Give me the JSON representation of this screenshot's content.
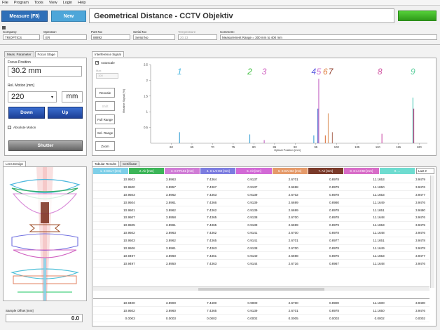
{
  "menu": [
    "File",
    "Program",
    "Tools",
    "View",
    "Login",
    "Help"
  ],
  "toolbar": {
    "measure_label": "Measure (F8)",
    "new_label": "New",
    "title": "Geometrical Distance - CCTV Objektiv",
    "status_color": "#3cb521"
  },
  "info": {
    "company": {
      "label": "Company:",
      "value": "TRIOPTICS"
    },
    "operator": {
      "label": "Operator:",
      "value": "ER"
    },
    "part": {
      "label": "Part No:",
      "value": "88892"
    },
    "serial": {
      "label": "Serial No:",
      "value": "Serial No"
    },
    "temperature": {
      "label": "Temperature",
      "value": "20.13"
    },
    "comment": {
      "label": "Comment:",
      "value": "Measurement Range = 300 mm to 400 mm"
    }
  },
  "left": {
    "tabs": [
      "Meas. Parameter",
      "Focus Stage"
    ],
    "focus_position_label": "Focus Position",
    "focus_position_value": "30.2 mm",
    "rel_motion_label": "Rel. Motion [mm]",
    "rel_motion_value": "220",
    "unit": "mm",
    "down": "Down",
    "up": "Up",
    "absolute_motion": "Absolute Motion",
    "shutter": "Shutter"
  },
  "signal": {
    "tab": "Interference Signal",
    "autoscale": "Autoscale",
    "max_label": "Max",
    "max_value": "100",
    "buttons": [
      "Rescale",
      "Shift",
      "Full Range",
      "Sel. Range",
      "Zoom"
    ]
  },
  "chart_data": {
    "type": "line",
    "xlabel": "Optical Position [mm]",
    "ylabel": "Relative Signal [%]",
    "xlim": [
      55,
      122
    ],
    "ylim": [
      0,
      2.5
    ],
    "xticks": [
      60,
      65,
      70,
      75,
      80,
      85,
      90,
      95,
      100,
      105,
      110,
      115,
      120
    ],
    "yticks": [
      0.5,
      1,
      1.5,
      2,
      2.5
    ],
    "peaks": [
      {
        "x": 62,
        "y": 0.35,
        "color": "#4aa8d8"
      },
      {
        "x": 79,
        "y": 0.28,
        "color": "#4aa8d8"
      },
      {
        "x": 82.5,
        "y": 0.1,
        "color": "#c870c8"
      },
      {
        "x": 94.5,
        "y": 0.25,
        "color": "#4aa8d8"
      },
      {
        "x": 95.5,
        "y": 1.1,
        "color": "#3a5fc8"
      },
      {
        "x": 95.7,
        "y": 2.05,
        "color": "#c870c8"
      },
      {
        "x": 97.3,
        "y": 0.25,
        "color": "#e08050"
      },
      {
        "x": 98,
        "y": 0.95,
        "color": "#e0a070"
      },
      {
        "x": 99,
        "y": 0.35,
        "color": "#b88070"
      },
      {
        "x": 111,
        "y": 0.3,
        "color": "#d060b0"
      },
      {
        "x": 118.5,
        "y": 1.45,
        "color": "#60d0c0"
      },
      {
        "x": 118.7,
        "y": 1.1,
        "color": "#c04080"
      }
    ],
    "labels": [
      {
        "text": "1",
        "x": 62,
        "color": "#4ab8e0"
      },
      {
        "text": "2",
        "x": 79,
        "color": "#40c040"
      },
      {
        "text": "3",
        "x": 82.5,
        "color": "#d060c0"
      },
      {
        "text": "4",
        "x": 94.5,
        "color": "#5a5ae0"
      },
      {
        "text": "5",
        "x": 95.7,
        "color": "#d070d0"
      },
      {
        "text": "6",
        "x": 97.3,
        "color": "#e08040"
      },
      {
        "text": "7",
        "x": 98.6,
        "color": "#904030"
      },
      {
        "text": "8",
        "x": 110.5,
        "color": "#d050a0"
      },
      {
        "text": "9",
        "x": 118.5,
        "color": "#60d0a0"
      }
    ]
  },
  "lens_tab": "Lens Design",
  "sample_offset_label": "Sample Offset [mm]",
  "sample_offset_value": "0.0",
  "results": {
    "tabs": [
      "Tabular Results",
      "Certificate"
    ],
    "unit_select": "Last",
    "headers": [
      {
        "label": "1. S-BSL7 [mm]",
        "color": "#7ecfe8"
      },
      {
        "label": "2. Air [mm]",
        "color": "#3cb558"
      },
      {
        "label": "3. S-FPL51 [mm]",
        "color": "#d07cd6"
      },
      {
        "label": "4. S-LAH60 [mm]",
        "color": "#7c7ce0"
      },
      {
        "label": "5. Air [mm]",
        "color": "#d26ad6"
      },
      {
        "label": "6. S-BAH32 [mm]",
        "color": "#e59a6a"
      },
      {
        "label": "7. Air [mm]",
        "color": "#7a3a2a"
      },
      {
        "label": "8. S-LAH60 [mm]",
        "color": "#d86cc8"
      },
      {
        "label": "9. ...",
        "color": "#6edcd0"
      }
    ],
    "rows": [
      [
        "10.9503",
        "3.8963",
        "7.4364",
        "0.9137",
        "2.6701",
        "0.8978",
        "11.1653",
        "3.9479"
      ],
      [
        "10.9500",
        "3.8957",
        "7.4367",
        "0.9137",
        "2.6698",
        "0.8979",
        "11.1650",
        "3.9476"
      ],
      [
        "10.9503",
        "3.8962",
        "7.4363",
        "0.9139",
        "2.6702",
        "0.8978",
        "11.1653",
        "3.9477"
      ],
      [
        "10.9504",
        "3.8961",
        "7.4366",
        "0.9139",
        "2.6699",
        "0.8980",
        "11.1649",
        "3.9476"
      ],
      [
        "10.9501",
        "3.8962",
        "7.4362",
        "0.9139",
        "2.6699",
        "0.8978",
        "11.1651",
        "3.9480"
      ],
      [
        "10.9507",
        "3.8958",
        "7.4365",
        "0.9138",
        "2.6700",
        "0.8978",
        "11.1648",
        "3.9476"
      ],
      [
        "10.9505",
        "3.8961",
        "7.4365",
        "0.9139",
        "2.6699",
        "0.8979",
        "11.1653",
        "3.9475"
      ],
      [
        "10.9502",
        "3.8963",
        "7.4362",
        "0.9141",
        "2.6700",
        "0.8978",
        "11.1648",
        "3.9476"
      ],
      [
        "10.9503",
        "3.8962",
        "7.4365",
        "0.9141",
        "2.6701",
        "0.8977",
        "11.1651",
        "3.9478"
      ],
      [
        "10.9506",
        "3.8961",
        "7.4363",
        "0.9138",
        "2.6700",
        "0.8978",
        "11.1649",
        "3.9478"
      ],
      [
        "10.9497",
        "3.8960",
        "7.4361",
        "0.9140",
        "2.6698",
        "0.8976",
        "11.1653",
        "3.9477"
      ],
      [
        "10.9497",
        "3.8950",
        "7.4363",
        "0.9144",
        "2.6716",
        "0.8967",
        "11.1648",
        "3.9476"
      ]
    ],
    "summary": [
      [
        "10.9400",
        "3.8900",
        "7.4400",
        "0.9000",
        "2.6700",
        "0.8900",
        "11.1600",
        "3.9400"
      ],
      [
        "10.9502",
        "3.8960",
        "7.4365",
        "0.9139",
        "2.6701",
        "0.8978",
        "11.1650",
        "3.9476"
      ],
      [
        "0.0003",
        "0.0003",
        "0.0002",
        "0.0002",
        "0.0005",
        "0.0003",
        "0.0002",
        "0.0002"
      ]
    ]
  }
}
